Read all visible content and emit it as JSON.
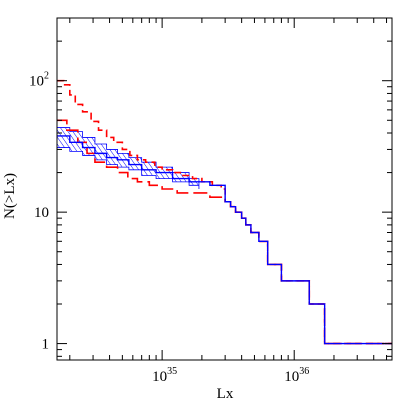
{
  "chart_data": {
    "type": "line",
    "title": "",
    "xlabel": "Lx",
    "ylabel": "N(>Lx)",
    "xscale": "log",
    "yscale": "log",
    "xlim": [
      1.6e+34,
      5.5e+36
    ],
    "ylim": [
      0.75,
      300
    ],
    "grid": false,
    "x_ticks": [
      {
        "value": 1e+35,
        "base": "10",
        "exp": "35"
      },
      {
        "value": 1e+36,
        "base": "10",
        "exp": "36"
      }
    ],
    "y_ticks": [
      {
        "value": 1,
        "label": "1",
        "base": "",
        "exp": ""
      },
      {
        "value": 10,
        "label": "10",
        "base": "",
        "exp": ""
      },
      {
        "value": 100,
        "label": "",
        "base": "10",
        "exp": "2"
      }
    ],
    "colors": {
      "red": "#ff0000",
      "blue": "#0000ff",
      "frame": "#000000"
    },
    "series": [
      {
        "style": "red-dashed",
        "color": "#ff0000",
        "dash": "short",
        "x": [
          1.6e+34,
          1.8e+34,
          2e+34,
          2.2e+34,
          2.5e+34,
          2.9e+34,
          3.3e+34,
          3.8e+34,
          4.3e+34,
          5e+34,
          5.7e+34,
          6.5e+34,
          7.5e+34,
          8.8e+34,
          1e+35,
          1.2e+35,
          1.4e+35,
          1.7e+35,
          2e+35,
          2.4e+35,
          2.8e+35,
          3e+35,
          3.3e+35,
          3.6e+35,
          4e+35,
          4.3e+35,
          4.7e+35,
          5.4e+35,
          6.3e+35,
          8e+35,
          1.1e+36,
          1.3e+36,
          1.7e+36,
          2.5e+36,
          3.5e+36,
          5.5e+36
        ],
        "y": [
          100,
          93,
          78,
          66,
          58,
          49,
          42,
          37,
          34,
          30,
          27,
          25,
          24,
          22,
          21,
          20,
          19,
          18,
          17,
          16,
          15,
          12,
          11,
          10,
          9,
          8,
          7,
          6,
          4,
          3,
          3,
          2,
          1,
          1,
          1,
          1
        ]
      },
      {
        "style": "red-long-dashed",
        "color": "#ff0000",
        "dash": "long",
        "x": [
          1.6e+34,
          1.9e+34,
          2.3e+34,
          2.7e+34,
          3.1e+34,
          3.8e+34,
          4.6e+34,
          5.5e+34,
          6.5e+34,
          8e+34,
          1e+35,
          1.3e+35,
          1.7e+35,
          2.3e+35,
          2.8e+35,
          3e+35,
          3.3e+35,
          3.6e+35,
          4e+35,
          4.3e+35,
          4.7e+35,
          5.4e+35,
          6.3e+35,
          8e+35,
          1.1e+36,
          1.3e+36,
          1.7e+36,
          2.5e+36,
          3.5e+36,
          5.5e+36
        ],
        "y": [
          50,
          42,
          34,
          28,
          24,
          22,
          20,
          18,
          17,
          16,
          15,
          14,
          14,
          13,
          13,
          12,
          11,
          10,
          9,
          8,
          7,
          6,
          4,
          3,
          3,
          2,
          1,
          1,
          1,
          1
        ]
      },
      {
        "style": "blue-solid",
        "color": "#0000ff",
        "dash": "none",
        "x": [
          1.6e+34,
          2e+34,
          2.5e+34,
          3.1e+34,
          3.8e+34,
          4.6e+34,
          5.6e+34,
          7e+34,
          9e+34,
          1.2e+35,
          1.6e+35,
          1.9e+35,
          2.3e+35,
          2.8e+35,
          3e+35,
          3.3e+35,
          3.6e+35,
          4e+35,
          4.3e+35,
          4.7e+35,
          5.4e+35,
          6.3e+35,
          8e+35,
          1.1e+36,
          1.3e+36,
          1.7e+36,
          2.5e+36,
          3.5e+36,
          5.5e+36
        ],
        "y": [
          38,
          34,
          31,
          28,
          26,
          25,
          23,
          21,
          20,
          18,
          17,
          17,
          16,
          16,
          12,
          11,
          10,
          9,
          8,
          7,
          6,
          4,
          3,
          3,
          2,
          1,
          1,
          1,
          1
        ]
      }
    ],
    "band": {
      "color": "#0000ff",
      "fill": "hatched",
      "x": [
        1.6e+34,
        2e+34,
        2.5e+34,
        3.1e+34,
        3.8e+34,
        4.6e+34,
        5.6e+34,
        7e+34,
        9e+34,
        1.2e+35,
        1.6e+35,
        1.9e+35
      ],
      "y_lower": [
        31,
        29,
        27,
        25,
        23,
        22,
        21,
        19,
        18,
        17,
        16,
        15
      ],
      "y_upper": [
        44,
        41,
        37,
        33,
        30,
        28,
        26,
        24,
        22,
        20,
        18,
        17
      ]
    }
  }
}
